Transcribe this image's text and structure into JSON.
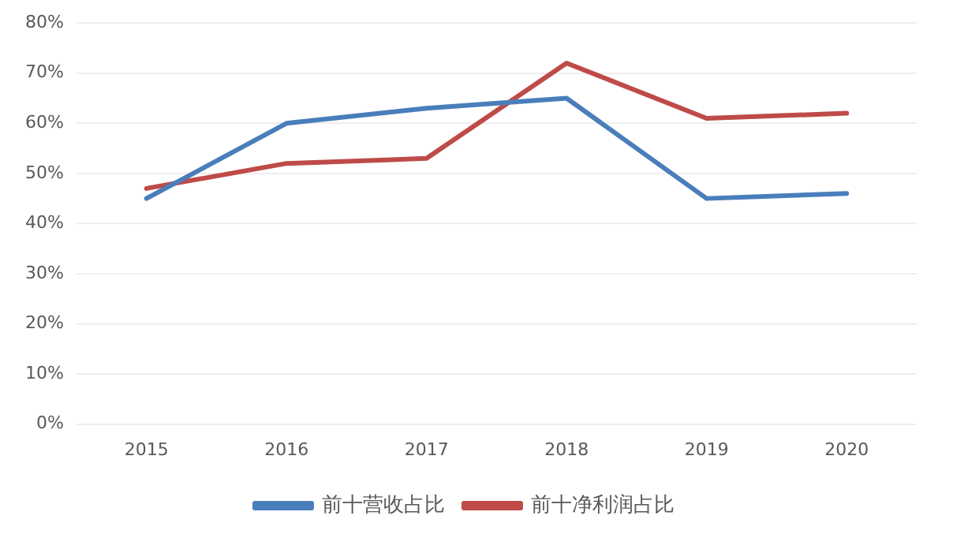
{
  "chart_data": {
    "type": "line",
    "categories": [
      "2015",
      "2016",
      "2017",
      "2018",
      "2019",
      "2020"
    ],
    "series": [
      {
        "name": "前十营收占比",
        "color": "#4a7ebb",
        "values": [
          45,
          60,
          63,
          65,
          45,
          46
        ]
      },
      {
        "name": "前十净利润占比",
        "color": "#be4b48",
        "values": [
          47,
          52,
          53,
          72,
          61,
          62
        ]
      }
    ],
    "ylim": [
      0,
      80
    ],
    "yticks": [
      {
        "value": 0,
        "label": "0%"
      },
      {
        "value": 10,
        "label": "10%"
      },
      {
        "value": 20,
        "label": "20%"
      },
      {
        "value": 30,
        "label": "30%"
      },
      {
        "value": 40,
        "label": "40%"
      },
      {
        "value": 50,
        "label": "50%"
      },
      {
        "value": 60,
        "label": "60%"
      },
      {
        "value": 70,
        "label": "70%"
      },
      {
        "value": 80,
        "label": "80%"
      }
    ],
    "grid": "y",
    "legend": "bottom",
    "marker": "none",
    "line_style": "solid"
  }
}
